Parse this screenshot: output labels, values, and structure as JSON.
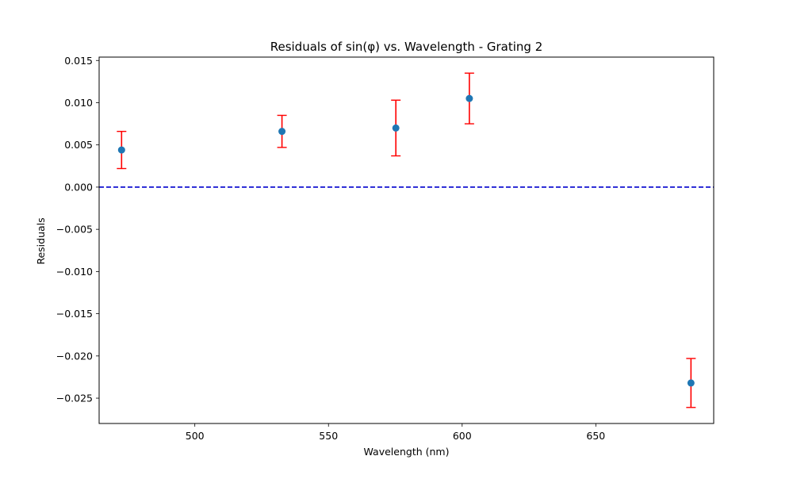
{
  "chart_data": {
    "type": "scatter",
    "title": "Residuals of sin(φ) vs. Wavelength - Grating 2",
    "xlabel": "Wavelength (nm)",
    "ylabel": "Residuals",
    "xlim": [
      464.2,
      694.1
    ],
    "ylim": [
      -0.028,
      0.0154
    ],
    "xticks": [
      500,
      550,
      600,
      650
    ],
    "xtick_labels": [
      "500",
      "550",
      "600",
      "650"
    ],
    "yticks": [
      -0.025,
      -0.02,
      -0.015,
      -0.01,
      -0.005,
      0.0,
      0.005,
      0.01,
      0.015
    ],
    "ytick_labels": [
      "−0.025",
      "−0.020",
      "−0.015",
      "−0.010",
      "−0.005",
      "0.000",
      "0.005",
      "0.010",
      "0.015"
    ],
    "grid": false,
    "series": [
      {
        "x": [
          472.6,
          532.6,
          575.2,
          602.7,
          685.6
        ],
        "y": [
          0.0044,
          0.0066,
          0.007,
          0.0105,
          -0.0232
        ],
        "yerr": [
          0.0022,
          0.0019,
          0.0033,
          0.003,
          0.0029
        ],
        "marker_color": "#1f77b4",
        "errorbar_color": "#ff0000"
      }
    ],
    "reference_line": {
      "y": 0.0,
      "style": "dashed",
      "color": "#0000cd"
    }
  }
}
